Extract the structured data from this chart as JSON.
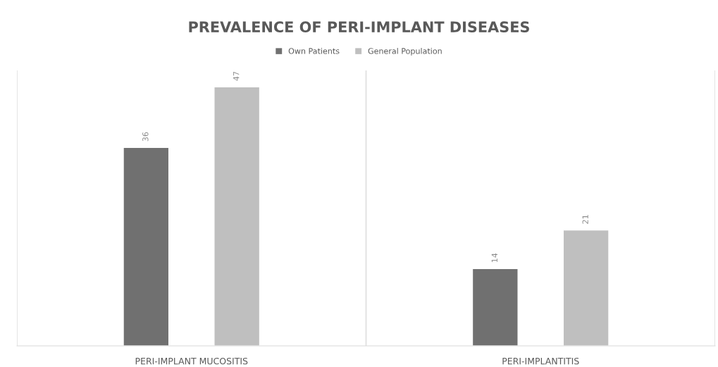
{
  "chart_data": {
    "type": "bar",
    "title": "PREVALENCE OF PERI-IMPLANT DISEASES",
    "categories": [
      "PERI-IMPLANT MUCOSITIS",
      "PERI-IMPLANTITIS"
    ],
    "series": [
      {
        "name": "Own Patients",
        "color": "#707070",
        "values": [
          36,
          14
        ]
      },
      {
        "name": "General Population",
        "color": "#bfbfbf",
        "values": [
          47,
          21
        ]
      }
    ],
    "ylim": [
      0,
      50
    ],
    "tick_labels": "x",
    "data_labels": true,
    "grid": "x",
    "legend": "top"
  }
}
